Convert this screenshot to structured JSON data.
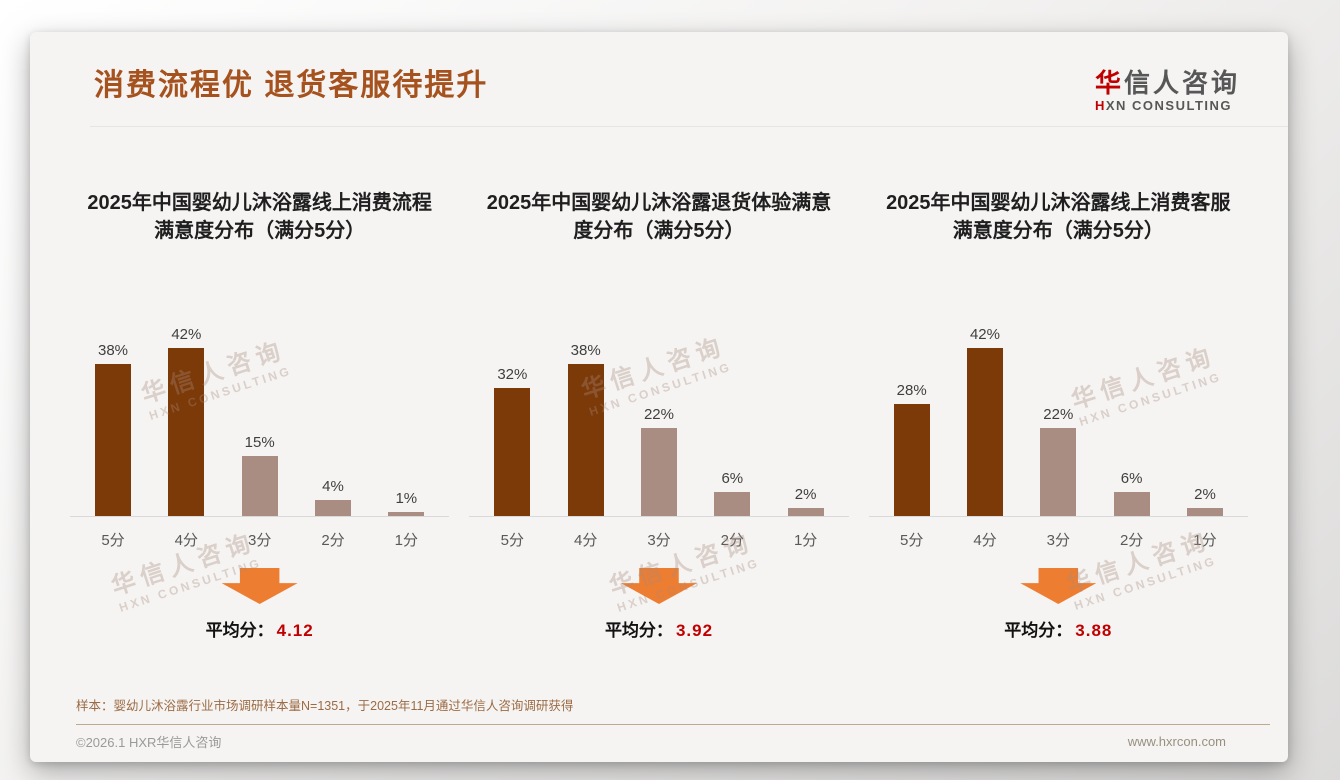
{
  "page": {
    "title": "消费流程优 退货客服待提升"
  },
  "logo": {
    "brand_first_char": "华",
    "brand_rest": "信人咨询",
    "subtitle_first_char": "H",
    "subtitle_rest": "XN CONSULTING"
  },
  "watermark": {
    "line1": "华信人咨询",
    "line2": "HXN CONSULTING"
  },
  "colors": {
    "bar_high": "#7c3a08",
    "bar_low": "#a98d82",
    "arrow_orange": "#ed7d31",
    "average_red": "#c00000",
    "title_brown": "#a5521f"
  },
  "chart_data": [
    {
      "type": "bar",
      "title": "2025年中国婴幼儿沐浴露线上消费流程满意度分布（满分5分）",
      "categories": [
        "5分",
        "4分",
        "3分",
        "2分",
        "1分"
      ],
      "values": [
        38,
        42,
        15,
        4,
        1
      ],
      "value_suffix": "%",
      "ylim": [
        0,
        45
      ],
      "grid": false,
      "legend": false,
      "average_label": "平均分：",
      "average_value": "4.12"
    },
    {
      "type": "bar",
      "title": "2025年中国婴幼儿沐浴露退货体验满意度分布（满分5分）",
      "categories": [
        "5分",
        "4分",
        "3分",
        "2分",
        "1分"
      ],
      "values": [
        32,
        38,
        22,
        6,
        2
      ],
      "value_suffix": "%",
      "ylim": [
        0,
        45
      ],
      "grid": false,
      "legend": false,
      "average_label": "平均分：",
      "average_value": "3.92"
    },
    {
      "type": "bar",
      "title": "2025年中国婴幼儿沐浴露线上消费客服满意度分布（满分5分）",
      "categories": [
        "5分",
        "4分",
        "3分",
        "2分",
        "1分"
      ],
      "values": [
        28,
        42,
        22,
        6,
        2
      ],
      "value_suffix": "%",
      "ylim": [
        0,
        45
      ],
      "grid": false,
      "legend": false,
      "average_label": "平均分：",
      "average_value": "3.88"
    }
  ],
  "footer": {
    "sample_note": "样本：婴幼儿沐浴露行业市场调研样本量N=1351，于2025年11月通过华信人咨询调研获得",
    "copyright": "©2026.1 HXR华信人咨询",
    "site_url": "www.hxrcon.com"
  }
}
